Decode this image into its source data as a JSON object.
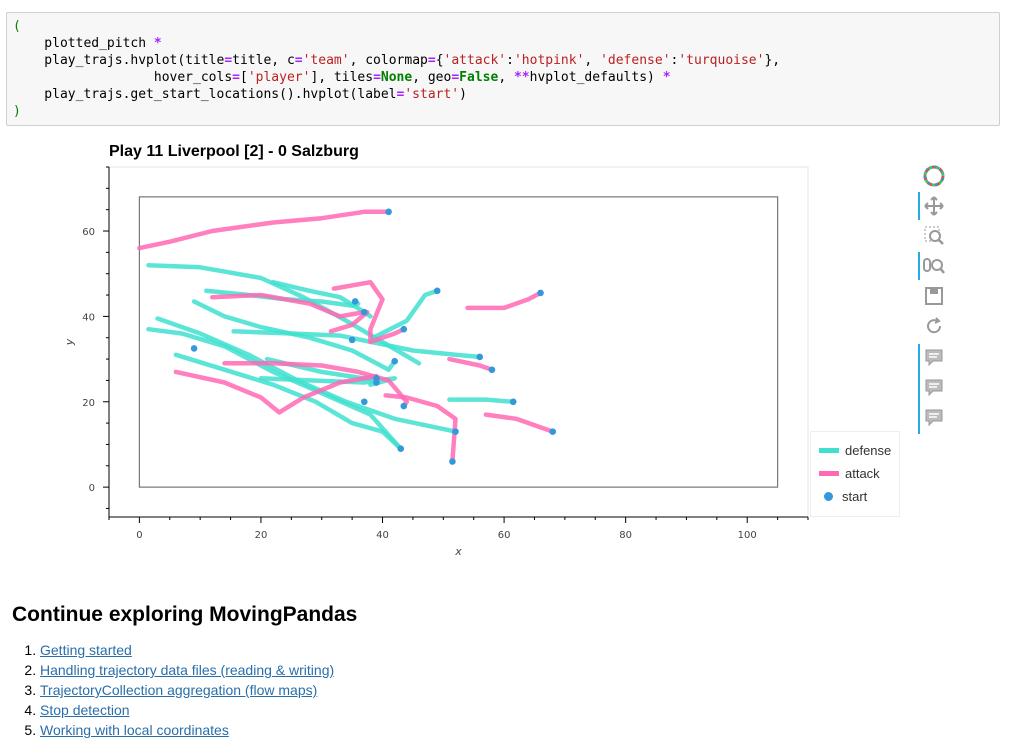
{
  "code": {
    "lines": [
      [
        {
          "t": "(",
          "c": "p"
        }
      ],
      [
        {
          "t": "    plotted_pitch "
        },
        {
          "t": "*",
          "c": "o"
        }
      ],
      [
        {
          "t": "    play_trajs.hvplot(title"
        },
        {
          "t": "=",
          "c": "o"
        },
        {
          "t": "title, c"
        },
        {
          "t": "=",
          "c": "o"
        },
        {
          "t": "'team'",
          "c": "s"
        },
        {
          "t": ", colormap"
        },
        {
          "t": "=",
          "c": "o"
        },
        {
          "t": "{"
        },
        {
          "t": "'attack'",
          "c": "s"
        },
        {
          "t": ":"
        },
        {
          "t": "'hotpink'",
          "c": "s"
        },
        {
          "t": ", "
        },
        {
          "t": "'defense'",
          "c": "s"
        },
        {
          "t": ":"
        },
        {
          "t": "'turquoise'",
          "c": "s"
        },
        {
          "t": "},"
        }
      ],
      [
        {
          "t": "                  hover_cols"
        },
        {
          "t": "=",
          "c": "o"
        },
        {
          "t": "["
        },
        {
          "t": "'player'",
          "c": "s"
        },
        {
          "t": "], tiles"
        },
        {
          "t": "=",
          "c": "o"
        },
        {
          "t": "None",
          "c": "k"
        },
        {
          "t": ", geo"
        },
        {
          "t": "=",
          "c": "o"
        },
        {
          "t": "False",
          "c": "k"
        },
        {
          "t": ", "
        },
        {
          "t": "**",
          "c": "o"
        },
        {
          "t": "hvplot_defaults) "
        },
        {
          "t": "*",
          "c": "o"
        }
      ],
      [
        {
          "t": "    play_trajs.get_start_locations().hvplot(label"
        },
        {
          "t": "=",
          "c": "o"
        },
        {
          "t": "'start'",
          "c": "s"
        },
        {
          "t": ")"
        }
      ],
      [
        {
          "t": ")",
          "c": "p"
        }
      ]
    ]
  },
  "plot": {
    "title": "Play 11 Liverpool [2] - 0 Salzburg",
    "xlabel": "x",
    "ylabel": "y",
    "colors": {
      "defense": "#40e0d0",
      "attack": "#ff69b4",
      "start": "#3498db"
    }
  },
  "legend": {
    "defense": "defense",
    "attack": "attack",
    "start": "start"
  },
  "chart_data": {
    "type": "line",
    "title": "Play 11 Liverpool [2] - 0 Salzburg",
    "xlabel": "x",
    "ylabel": "y",
    "xlim": [
      -5,
      110
    ],
    "ylim": [
      -7,
      75
    ],
    "xticks": [
      0,
      20,
      40,
      60,
      80,
      100
    ],
    "yticks": [
      0,
      20,
      40,
      60
    ],
    "pitch": {
      "x": [
        0,
        105
      ],
      "y": [
        0,
        68
      ]
    },
    "series": [
      {
        "name": "defense",
        "trajectories": [
          [
            [
              1.5,
              52
            ],
            [
              10,
              51.5
            ],
            [
              20,
              49
            ],
            [
              27,
              44.5
            ],
            [
              34,
              39
            ],
            [
              40,
              34
            ],
            [
              46,
              29
            ]
          ],
          [
            [
              1.5,
              37
            ],
            [
              7,
              36
            ],
            [
              14,
              33
            ],
            [
              22,
              27
            ],
            [
              30,
              22
            ],
            [
              38,
              17
            ],
            [
              43,
              9
            ]
          ],
          [
            [
              3,
              39.5
            ],
            [
              10,
              36
            ],
            [
              18,
              31
            ],
            [
              26,
              25
            ],
            [
              34,
              20
            ],
            [
              42,
              16
            ],
            [
              52,
              13
            ]
          ],
          [
            [
              6,
              31
            ],
            [
              14,
              27.5
            ],
            [
              22,
              24
            ],
            [
              29,
              20
            ],
            [
              35,
              15
            ],
            [
              40,
              13
            ],
            [
              43,
              9
            ]
          ],
          [
            [
              9,
              43.5
            ],
            [
              14,
              40
            ],
            [
              20,
              37.5
            ],
            [
              28,
              35
            ],
            [
              35,
              32
            ],
            [
              41,
              27.5
            ],
            [
              42,
              29.5
            ]
          ],
          [
            [
              15.5,
              36.5
            ],
            [
              25,
              36
            ],
            [
              33,
              35.5
            ],
            [
              45,
              32
            ],
            [
              52,
              31
            ],
            [
              56,
              30.5
            ]
          ],
          [
            [
              11,
              46
            ],
            [
              18,
              45
            ],
            [
              24,
              44
            ],
            [
              30,
              43.5
            ],
            [
              35,
              42.5
            ],
            [
              36,
              43
            ]
          ],
          [
            [
              21,
              30
            ],
            [
              30,
              27
            ],
            [
              39,
              25
            ],
            [
              42,
              25.5
            ],
            [
              38,
              24
            ]
          ],
          [
            [
              20,
              25.5
            ],
            [
              28,
              25
            ],
            [
              37,
              24.5
            ],
            [
              39,
              25
            ]
          ],
          [
            [
              38.5,
              35
            ],
            [
              44,
              39
            ],
            [
              47,
              45
            ],
            [
              49,
              46
            ]
          ],
          [
            [
              22,
              48
            ],
            [
              28,
              46
            ],
            [
              33,
              44.5
            ],
            [
              37,
              41
            ],
            [
              38,
              40
            ]
          ],
          [
            [
              51,
              20.5
            ],
            [
              57,
              20.5
            ],
            [
              61.5,
              20
            ]
          ]
        ]
      },
      {
        "name": "attack",
        "trajectories": [
          [
            [
              0,
              56
            ],
            [
              5,
              57.5
            ],
            [
              12,
              60
            ],
            [
              22,
              62
            ],
            [
              30,
              63
            ],
            [
              37,
              64.5
            ],
            [
              41,
              64.5
            ]
          ],
          [
            [
              6,
              27
            ],
            [
              14,
              24.5
            ],
            [
              20,
              21
            ],
            [
              23,
              17.5
            ],
            [
              27,
              21
            ],
            [
              33,
              24.5
            ],
            [
              39,
              26
            ]
          ],
          [
            [
              12,
              44.5
            ],
            [
              20,
              45
            ],
            [
              28,
              43
            ],
            [
              33,
              40
            ],
            [
              37,
              41
            ]
          ],
          [
            [
              14,
              29
            ],
            [
              22,
              29
            ],
            [
              30,
              28.5
            ],
            [
              36,
              27
            ],
            [
              41,
              25
            ],
            [
              44,
              20
            ],
            [
              43.5,
              19
            ]
          ],
          [
            [
              32,
              46.5
            ],
            [
              38,
              48
            ],
            [
              40,
              44
            ],
            [
              38,
              37
            ],
            [
              38,
              34
            ],
            [
              42,
              36
            ],
            [
              43.5,
              37
            ]
          ],
          [
            [
              31.5,
              36.5
            ],
            [
              35,
              38
            ],
            [
              37.5,
              41
            ]
          ],
          [
            [
              40.5,
              21.5
            ],
            [
              44,
              21
            ],
            [
              49,
              19
            ],
            [
              52,
              16
            ],
            [
              51.5,
              6
            ]
          ],
          [
            [
              51,
              30
            ],
            [
              56,
              28.5
            ],
            [
              58,
              27.5
            ]
          ],
          [
            [
              54,
              42
            ],
            [
              60,
              42
            ],
            [
              64,
              44
            ],
            [
              66,
              45.5
            ]
          ],
          [
            [
              57,
              17
            ],
            [
              62,
              16
            ],
            [
              68,
              13
            ]
          ]
        ]
      },
      {
        "name": "start",
        "points": [
          [
            41,
            64.5
          ],
          [
            35.5,
            43.5
          ],
          [
            37,
            41
          ],
          [
            49,
            46
          ],
          [
            66,
            45.5
          ],
          [
            43.5,
            37
          ],
          [
            35,
            34.5
          ],
          [
            9,
            32.5
          ],
          [
            56,
            30.5
          ],
          [
            58,
            27.5
          ],
          [
            42,
            29.5
          ],
          [
            39,
            25.5
          ],
          [
            39,
            24.5
          ],
          [
            37,
            20
          ],
          [
            43.5,
            19
          ],
          [
            61.5,
            20
          ],
          [
            52,
            13
          ],
          [
            68,
            13
          ],
          [
            43,
            9
          ],
          [
            51.5,
            6
          ]
        ]
      }
    ]
  },
  "toolbar": {
    "items": [
      "bokeh-logo-icon",
      "pan-icon",
      "box-zoom-icon",
      "wheel-zoom-icon",
      "save-icon",
      "reset-icon",
      "hover-icon",
      "hover-icon",
      "hover-icon"
    ]
  },
  "section": {
    "heading": "Continue exploring MovingPandas",
    "links": [
      "Getting started",
      "Handling trajectory data files (reading & writing)",
      "TrajectoryCollection aggregation (flow maps)",
      "Stop detection",
      "Working with local coordinates"
    ]
  }
}
